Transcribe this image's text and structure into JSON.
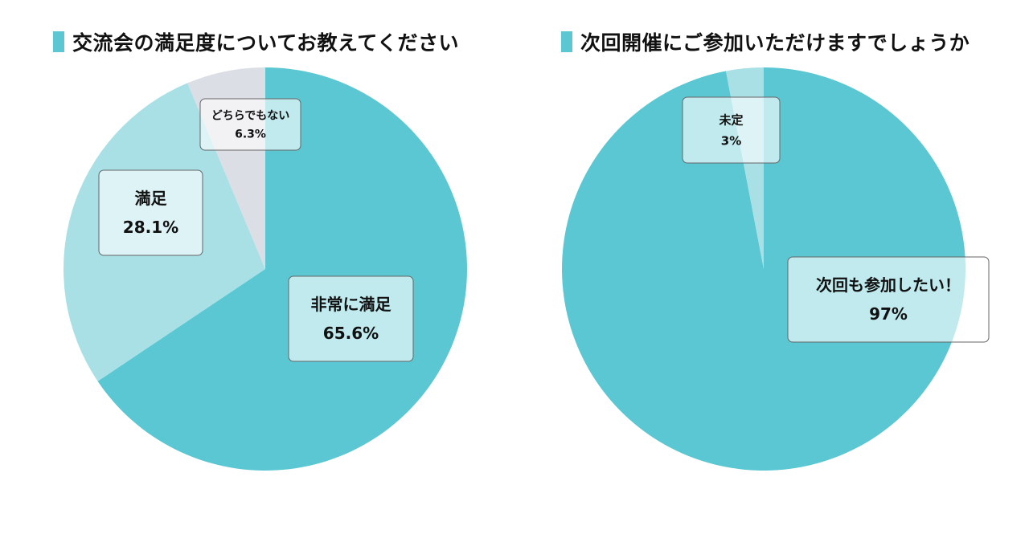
{
  "chart_data": [
    {
      "type": "pie",
      "title": "交流会の満足度についてお教えてください",
      "slices": [
        {
          "label": "非常に満足",
          "value": 65.6,
          "value_label": "65.6%",
          "color": "#5ac7d2"
        },
        {
          "label": "満足",
          "value": 28.1,
          "value_label": "28.1%",
          "color": "#a8e0e6"
        },
        {
          "label": "どちらでもない",
          "value": 6.3,
          "value_label": "6.3%",
          "color": "#dcdee5"
        }
      ],
      "start_angle_deg": 0,
      "direction": "clockwise",
      "legend": "none"
    },
    {
      "type": "pie",
      "title": "次回開催にご参加いただけますでしょうか",
      "slices": [
        {
          "label": "次回も参加したい！",
          "value": 97,
          "value_label": "97%",
          "color": "#5ac7d2"
        },
        {
          "label": "未定",
          "value": 3,
          "value_label": "3%",
          "color": "#a8e0e6"
        }
      ],
      "start_angle_deg": 0,
      "direction": "clockwise",
      "legend": "none"
    }
  ]
}
